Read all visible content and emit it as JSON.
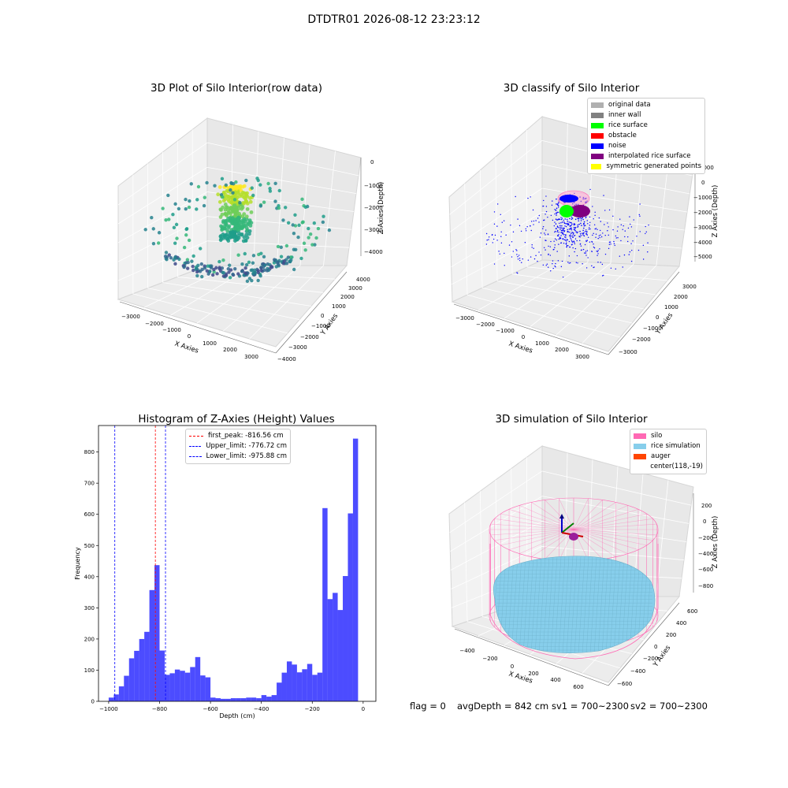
{
  "suptitle": "DTDTR01 2026-08-12 23:23:12",
  "panels": {
    "raw": {
      "title": "3D Plot of Silo Interior(row data)",
      "xlabel": "X Axies",
      "ylabel": "Y Axies",
      "zlabel": "Z Axies (Depth)",
      "xticks": [
        "−3000",
        "−2000",
        "−1000",
        "0",
        "1000",
        "2000",
        "3000"
      ],
      "yticks": [
        "−4000",
        "−3000",
        "−2000",
        "−1000",
        "0",
        "1000",
        "2000",
        "3000",
        "4000"
      ],
      "zticks": [
        "0",
        "−1000",
        "−2000",
        "−3000",
        "−4000"
      ]
    },
    "classify": {
      "title": "3D classify of Silo Interior",
      "xlabel": "X Axies",
      "ylabel": "Y Axies",
      "zlabel": "Z Axies (Depth)",
      "xticks": [
        "−3000",
        "−2000",
        "−1000",
        "0",
        "1000",
        "2000",
        "3000"
      ],
      "yticks": [
        "−3000",
        "−2000",
        "−1000",
        "0",
        "1000",
        "2000",
        "3000"
      ],
      "zticks": [
        "1000",
        "0",
        "−1000",
        "−2000",
        "−3000",
        "−4000",
        "−5000"
      ],
      "legend": [
        {
          "label": "original data",
          "color": "#b0b0b0"
        },
        {
          "label": "inner wall",
          "color": "#808080"
        },
        {
          "label": "rice surface",
          "color": "#00ff00"
        },
        {
          "label": "obstacle",
          "color": "#ff0000"
        },
        {
          "label": "noise",
          "color": "#0000ff"
        },
        {
          "label": "interpolated rice surface",
          "color": "#800080"
        },
        {
          "label": "symmetric generated points",
          "color": "#ffff00"
        }
      ]
    },
    "histogram": {
      "title": "Histogram of Z-Axies (Height) Values",
      "legend": [
        {
          "label": "first_peak: -816.56 cm",
          "color": "#ff0000"
        },
        {
          "label": "Upper_limit: -776.72 cm",
          "color": "#0000ff"
        },
        {
          "label": "Lower_limit: -975.88 cm",
          "color": "#0000ff"
        }
      ]
    },
    "simulation": {
      "title": "3D simulation of Silo Interior",
      "xlabel": "X Axies",
      "ylabel": "Y Axies",
      "zlabel": "Z Axies (Depth)",
      "xticks": [
        "−400",
        "−200",
        "0",
        "200",
        "400",
        "600"
      ],
      "yticks": [
        "−600",
        "−400",
        "−200",
        "0",
        "200",
        "400",
        "600"
      ],
      "zticks": [
        "200",
        "0",
        "−200",
        "−400",
        "−600",
        "−800"
      ],
      "legend": [
        {
          "label": "silo",
          "color": "#ff69b4"
        },
        {
          "label": "rice simulation",
          "color": "#87ceeb"
        },
        {
          "label": "auger",
          "color": "#ff4500"
        },
        {
          "label": "center(118,-19)",
          "color": ""
        }
      ]
    }
  },
  "footer": {
    "flag": "flag = 0",
    "avg": "avgDepth = 842 cm",
    "sv1": "sv1 = 700~2300",
    "sv2": "sv2 = 700~2300"
  },
  "chart_data": [
    {
      "type": "scatter",
      "title": "3D Plot of Silo Interior(row data)",
      "xlabel": "X Axies",
      "ylabel": "Y Axies",
      "zlabel": "Z Axies (Depth)",
      "xlim": [
        -3500,
        3500
      ],
      "ylim": [
        -4000,
        4000
      ],
      "zlim": [
        -4500,
        0
      ],
      "grid": true
    },
    {
      "type": "scatter",
      "title": "3D classify of Silo Interior",
      "xlabel": "X Axies",
      "ylabel": "Y Axies",
      "zlabel": "Z Axies (Depth)",
      "xlim": [
        -3500,
        3500
      ],
      "ylim": [
        -3500,
        3500
      ],
      "zlim": [
        -5500,
        1000
      ],
      "grid": true,
      "legend_position": "top-right",
      "series": [
        {
          "name": "original data",
          "color": "#b0b0b0"
        },
        {
          "name": "inner wall",
          "color": "#808080"
        },
        {
          "name": "rice surface",
          "color": "#00ff00"
        },
        {
          "name": "obstacle",
          "color": "#ff0000"
        },
        {
          "name": "noise",
          "color": "#0000ff"
        },
        {
          "name": "interpolated rice surface",
          "color": "#800080"
        },
        {
          "name": "symmetric generated points",
          "color": "#ffff00"
        }
      ]
    },
    {
      "type": "bar",
      "title": "Histogram of Z-Axies (Height) Values",
      "xlabel": "Depth (cm)",
      "ylabel": "Frequency",
      "xlim": [
        -1040,
        50
      ],
      "ylim": [
        0,
        885
      ],
      "xticks": [
        -1000,
        -800,
        -600,
        -400,
        -200,
        0
      ],
      "yticks": [
        0,
        100,
        200,
        300,
        400,
        500,
        600,
        700,
        800
      ],
      "bin_start": -1000,
      "bin_width": 20,
      "values": [
        12,
        22,
        48,
        82,
        138,
        162,
        200,
        223,
        357,
        437,
        163,
        85,
        90,
        102,
        98,
        92,
        110,
        142,
        83,
        77,
        12,
        10,
        8,
        8,
        10,
        10,
        10,
        12,
        12,
        10,
        20,
        15,
        20,
        60,
        92,
        128,
        118,
        93,
        103,
        120,
        85,
        92,
        620,
        328,
        348,
        293,
        402,
        603,
        843
      ],
      "bar_color": "#0000ff",
      "vlines": [
        {
          "name": "first_peak: -816.56 cm",
          "x": -816.56,
          "color": "#ff0000"
        },
        {
          "name": "Upper_limit: -776.72 cm",
          "x": -776.72,
          "color": "#0000ff"
        },
        {
          "name": "Lower_limit: -975.88 cm",
          "x": -975.88,
          "color": "#0000ff"
        }
      ],
      "legend_position": "top-center"
    },
    {
      "type": "area",
      "title": "3D simulation of Silo Interior",
      "xlabel": "X Axies",
      "ylabel": "Y Axies",
      "zlabel": "Z Axies (Depth)",
      "xlim": [
        -500,
        700
      ],
      "ylim": [
        -700,
        700
      ],
      "zlim": [
        -950,
        350
      ],
      "grid": true,
      "legend_position": "top-right",
      "series": [
        {
          "name": "silo",
          "color": "#ff69b4"
        },
        {
          "name": "rice simulation",
          "color": "#87ceeb"
        },
        {
          "name": "auger",
          "color": "#ff4500"
        },
        {
          "name": "center(118,-19)"
        }
      ]
    }
  ]
}
